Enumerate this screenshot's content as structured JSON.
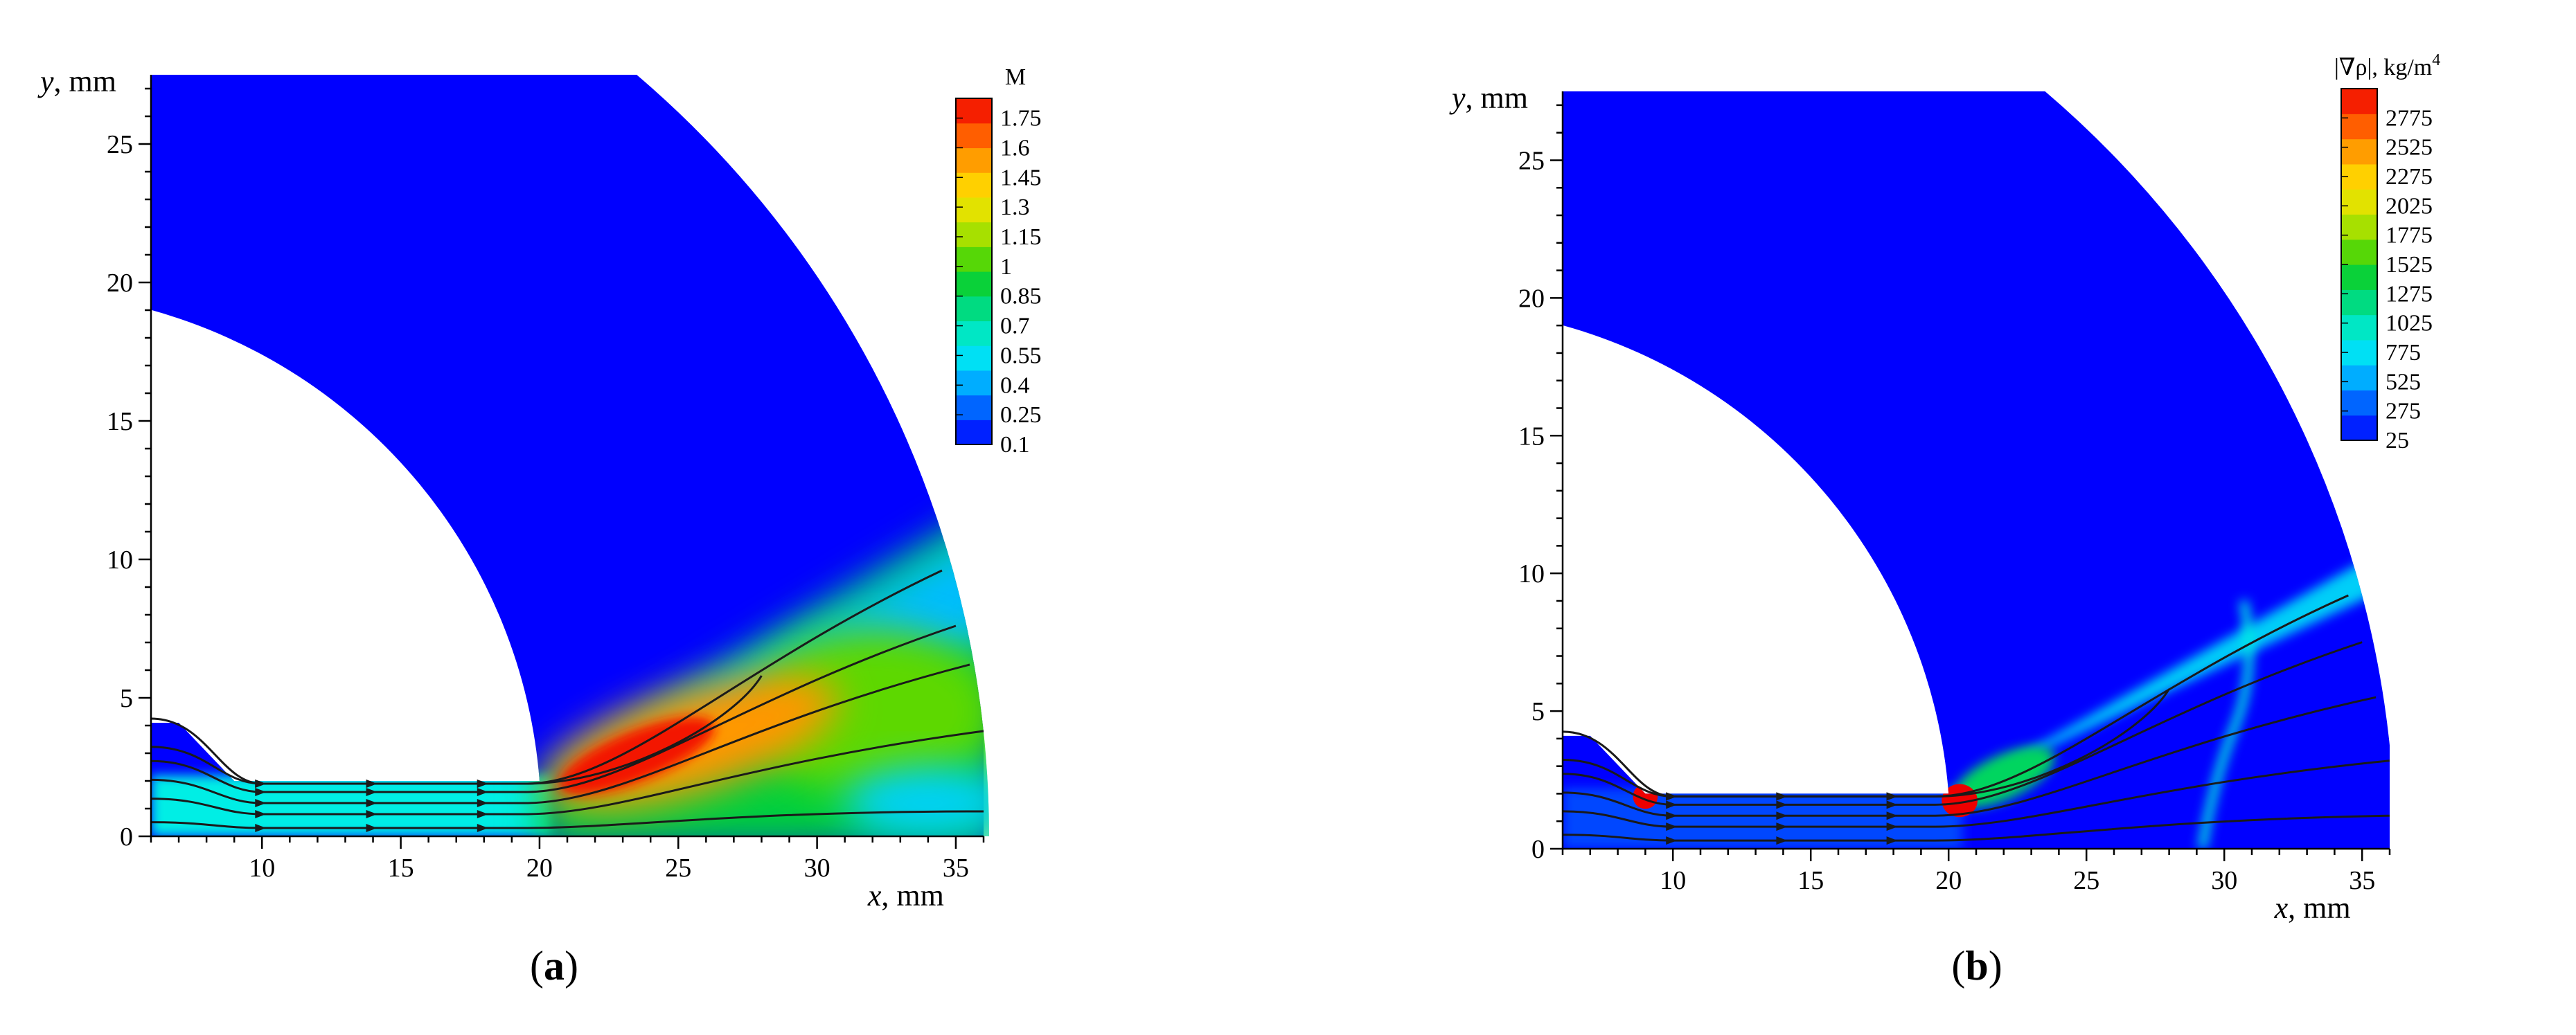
{
  "chart_data": [
    {
      "type": "heatmap",
      "panel_label": {
        "open": "(",
        "letter": "a",
        "close": ")"
      },
      "xlabel": {
        "var": "x",
        "unit": ", mm"
      },
      "ylabel": {
        "var": "y",
        "unit": ", mm"
      },
      "xlim": [
        6,
        36
      ],
      "ylim": [
        0,
        27.5
      ],
      "xticks": [
        "10",
        "15",
        "20",
        "25",
        "30",
        "35"
      ],
      "yticks": [
        "0",
        "5",
        "10",
        "15",
        "20",
        "25"
      ],
      "colorbar": {
        "title": "M",
        "ticks": [
          "1.75",
          "1.6",
          "1.45",
          "1.3",
          "1.15",
          "1",
          "0.85",
          "0.7",
          "0.55",
          "0.4",
          "0.25",
          "0.1"
        ],
        "range": [
          0.1,
          1.85
        ]
      },
      "geometry": {
        "inner_radius": 19.2,
        "outer_radius": 36.2,
        "arc_center": [
          0,
          0
        ],
        "channel_top": 2.0,
        "channel_x": [
          9,
          20
        ],
        "inlet_step_height": 4.1,
        "inlet_step_x": [
          6,
          7
        ]
      },
      "field_features": [
        {
          "name": "jet-core",
          "x": 25,
          "y": 3.5,
          "value": 1.75
        },
        {
          "name": "outer-flow",
          "x": 32,
          "y": 4.5,
          "value": 1.05
        },
        {
          "name": "channel",
          "x": 14,
          "y": 1.2,
          "value": 0.55
        },
        {
          "name": "cavity",
          "x": 20,
          "y": 18,
          "value": 0.1
        }
      ],
      "streamlines": [
        {
          "start_y": 0.3,
          "end": [
            36,
            0.9
          ]
        },
        {
          "start_y": 0.8,
          "end": [
            36,
            3.8
          ]
        },
        {
          "start_y": 1.2,
          "end": [
            35.5,
            6.2
          ]
        },
        {
          "start_y": 1.6,
          "end": [
            35,
            7.6
          ]
        },
        {
          "start_y": 1.9,
          "end": [
            34.5,
            9.6
          ]
        },
        {
          "start_y": 2.5,
          "end": [
            28,
            5.8
          ]
        }
      ]
    },
    {
      "type": "heatmap",
      "panel_label": {
        "open": "(",
        "letter": "b",
        "close": ")"
      },
      "xlabel": {
        "var": "x",
        "unit": ", mm"
      },
      "ylabel": {
        "var": "y",
        "unit": ", mm"
      },
      "xlim": [
        6,
        36
      ],
      "ylim": [
        0,
        27.5
      ],
      "xticks": [
        "10",
        "15",
        "20",
        "25",
        "30",
        "35"
      ],
      "yticks": [
        "0",
        "5",
        "10",
        "15",
        "20",
        "25"
      ],
      "colorbar": {
        "title": "|∇ρ|, kg/m",
        "title_sup": "4",
        "ticks": [
          "2775",
          "2525",
          "2275",
          "2025",
          "1775",
          "1525",
          "1275",
          "1025",
          "775",
          "525",
          "275",
          "25"
        ],
        "range": [
          25,
          3025
        ]
      },
      "geometry": {
        "inner_radius": 19.2,
        "outer_radius": 36.2,
        "arc_center": [
          0,
          0
        ],
        "channel_top": 2.0,
        "channel_x": [
          9,
          20
        ],
        "inlet_step_height": 4.1,
        "inlet_step_x": [
          6,
          7
        ]
      },
      "field_features": [
        {
          "name": "inlet-corner-spot",
          "x": 9,
          "y": 1.9,
          "value": 3000
        },
        {
          "name": "exit-corner-spot",
          "x": 20.3,
          "y": 1.8,
          "value": 3000
        },
        {
          "name": "shear-layer",
          "x": 23,
          "y": 3.2,
          "value": 1000
        },
        {
          "name": "shock-line",
          "x": 30,
          "y": 4.5,
          "value": 700
        }
      ],
      "streamlines": [
        {
          "start_y": 0.3,
          "end": [
            36,
            1.2
          ]
        },
        {
          "start_y": 0.8,
          "end": [
            36,
            3.2
          ]
        },
        {
          "start_y": 1.2,
          "end": [
            35.5,
            5.5
          ]
        },
        {
          "start_y": 1.6,
          "end": [
            35,
            7.5
          ]
        },
        {
          "start_y": 1.9,
          "end": [
            34.5,
            9.2
          ]
        },
        {
          "start_y": 2.5,
          "end": [
            28,
            5.8
          ]
        }
      ]
    }
  ],
  "colors": {
    "scale": [
      "#0000ff",
      "#0055ff",
      "#00b0ff",
      "#00f0f0",
      "#00e0a0",
      "#00d040",
      "#60d800",
      "#c8e400",
      "#ffe000",
      "#ffa000",
      "#ff5000",
      "#ee0000"
    ],
    "streamline": "#1a1a1a",
    "axis": "#000000"
  }
}
